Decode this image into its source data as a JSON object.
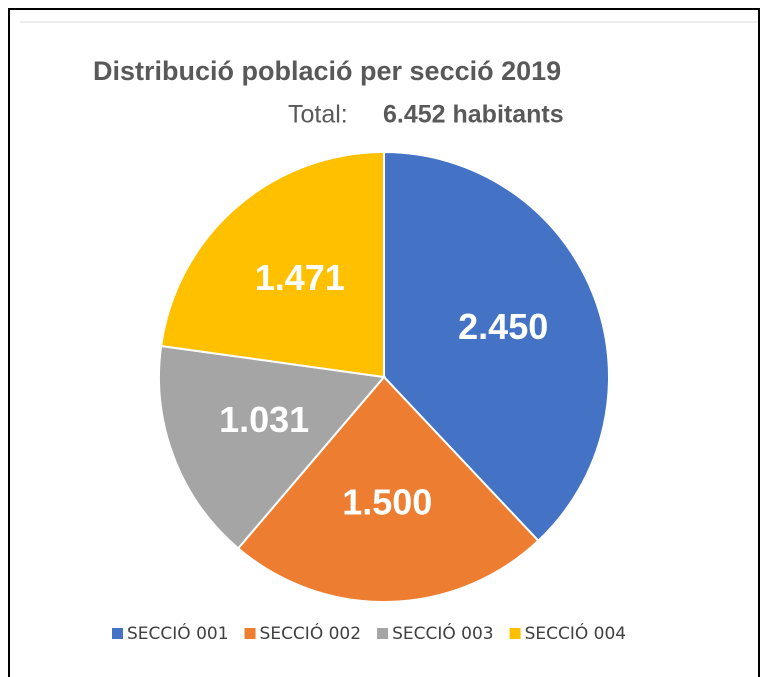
{
  "chart_data": {
    "type": "pie",
    "title": "Distribució població per secció 2019",
    "subtitle_label": "Total:",
    "subtitle_value": "6.452 habitants",
    "categories": [
      "SECCIÓ 001",
      "SECCIÓ 002",
      "SECCIÓ 003",
      "SECCIÓ 004"
    ],
    "values": [
      2450,
      1500,
      1031,
      1471
    ],
    "value_labels": [
      "2.450",
      "1.500",
      "1.031",
      "1.471"
    ],
    "colors": [
      "#4472c4",
      "#ed7d31",
      "#a5a5a5",
      "#ffc000"
    ],
    "legend": "bottom"
  }
}
